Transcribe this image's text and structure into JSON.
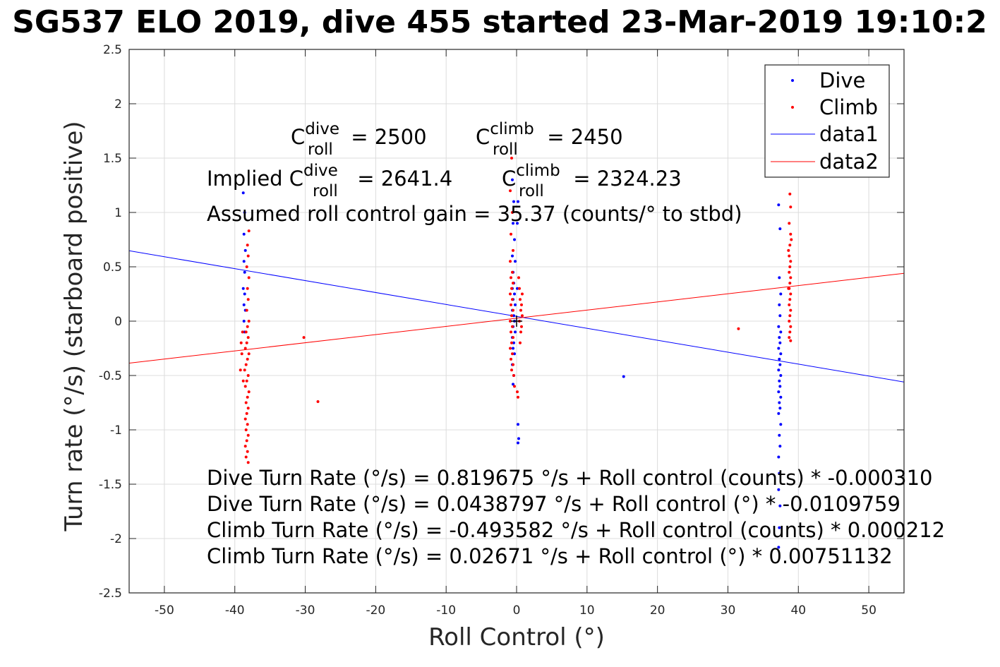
{
  "title": "SG537 ELO 2019, dive 455 started 23-Mar-2019 19:10:2",
  "chart_data": {
    "type": "scatter",
    "xlabel": "Roll Control (°)",
    "ylabel": "Turn rate (°/s) (starboard positive)",
    "xlim": [
      -55,
      55
    ],
    "ylim": [
      -2.5,
      2.5
    ],
    "xticks": [
      -50,
      -40,
      -30,
      -20,
      -10,
      0,
      10,
      20,
      30,
      40,
      50
    ],
    "yticks": [
      -2.5,
      -2,
      -1.5,
      -1,
      -0.5,
      0,
      0.5,
      1,
      1.5,
      2,
      2.5
    ],
    "grid": true,
    "legend_position": "top-right",
    "legend": [
      {
        "label": "Dive",
        "kind": "marker",
        "color": "#0000ff"
      },
      {
        "label": "Climb",
        "kind": "marker",
        "color": "#ff0000"
      },
      {
        "label": "data1",
        "kind": "line",
        "color": "#0000ff"
      },
      {
        "label": "data2",
        "kind": "line",
        "color": "#ff0000"
      }
    ],
    "series": [
      {
        "name": "Dive",
        "kind": "scatter",
        "color": "#0000ff",
        "points": [
          [
            -38.8,
            1.18
          ],
          [
            -38.6,
            1.0
          ],
          [
            -38.7,
            0.8
          ],
          [
            -38.5,
            0.65
          ],
          [
            -38.7,
            0.55
          ],
          [
            -38.6,
            0.45
          ],
          [
            -38.8,
            0.3
          ],
          [
            -38.6,
            0.25
          ],
          [
            -38.7,
            0.15
          ],
          [
            -38.5,
            0.1
          ],
          [
            -38.7,
            0.0
          ],
          [
            -38.6,
            -0.1
          ],
          [
            -0.6,
            1.3
          ],
          [
            -0.4,
            1.1
          ],
          [
            -0.5,
            0.9
          ],
          [
            -0.3,
            0.75
          ],
          [
            -0.6,
            0.6
          ],
          [
            -0.2,
            0.55
          ],
          [
            -0.5,
            0.45
          ],
          [
            -0.4,
            0.35
          ],
          [
            -0.6,
            0.3
          ],
          [
            -0.3,
            0.25
          ],
          [
            -0.5,
            0.2
          ],
          [
            -0.2,
            0.15
          ],
          [
            -0.6,
            0.1
          ],
          [
            -0.4,
            0.05
          ],
          [
            -0.3,
            0.0
          ],
          [
            -0.5,
            -0.05
          ],
          [
            -0.2,
            -0.1
          ],
          [
            -0.6,
            -0.15
          ],
          [
            -0.4,
            -0.2
          ],
          [
            -0.5,
            -0.25
          ],
          [
            -0.3,
            -0.3
          ],
          [
            -0.6,
            -0.4
          ],
          [
            -0.4,
            -0.5
          ],
          [
            -0.5,
            -0.58
          ],
          [
            0.2,
            -0.95
          ],
          [
            0.3,
            -1.08
          ],
          [
            0.2,
            -1.12
          ],
          [
            0.1,
            0.9
          ],
          [
            0.2,
            1.1
          ],
          [
            0.1,
            0.3
          ],
          [
            15.2,
            -0.51
          ],
          [
            37.2,
            1.07
          ],
          [
            37.4,
            0.85
          ],
          [
            37.3,
            0.4
          ],
          [
            37.5,
            0.25
          ],
          [
            37.3,
            0.15
          ],
          [
            37.4,
            0.05
          ],
          [
            37.2,
            -0.05
          ],
          [
            37.5,
            -0.1
          ],
          [
            37.3,
            -0.15
          ],
          [
            37.4,
            -0.2
          ],
          [
            37.2,
            -0.25
          ],
          [
            37.5,
            -0.3
          ],
          [
            37.3,
            -0.35
          ],
          [
            37.4,
            -0.4
          ],
          [
            37.2,
            -0.45
          ],
          [
            37.5,
            -0.5
          ],
          [
            37.3,
            -0.55
          ],
          [
            37.4,
            -0.6
          ],
          [
            37.2,
            -0.65
          ],
          [
            37.5,
            -0.7
          ],
          [
            37.3,
            -0.75
          ],
          [
            37.4,
            -0.8
          ],
          [
            37.2,
            -0.85
          ],
          [
            37.5,
            -0.95
          ],
          [
            37.3,
            -1.05
          ],
          [
            37.4,
            -1.15
          ],
          [
            37.2,
            -1.25
          ],
          [
            37.3,
            -1.4
          ],
          [
            37.2,
            -1.55
          ],
          [
            37.4,
            -1.7
          ],
          [
            37.3,
            -1.9
          ],
          [
            37.2,
            -2.08
          ]
        ]
      },
      {
        "name": "Climb",
        "kind": "scatter",
        "color": "#ff0000",
        "points": [
          [
            -38.0,
            0.83
          ],
          [
            -38.2,
            0.7
          ],
          [
            -38.1,
            0.6
          ],
          [
            -38.3,
            0.5
          ],
          [
            -38.0,
            0.4
          ],
          [
            -38.2,
            0.3
          ],
          [
            -38.1,
            0.2
          ],
          [
            -38.3,
            0.1
          ],
          [
            -38.0,
            0.0
          ],
          [
            -38.2,
            -0.05
          ],
          [
            -38.4,
            -0.1
          ],
          [
            -38.1,
            -0.15
          ],
          [
            -38.3,
            -0.2
          ],
          [
            -38.5,
            -0.25
          ],
          [
            -38.0,
            -0.3
          ],
          [
            -38.2,
            -0.35
          ],
          [
            -38.4,
            -0.4
          ],
          [
            -38.6,
            -0.45
          ],
          [
            -38.1,
            -0.5
          ],
          [
            -38.3,
            -0.55
          ],
          [
            -38.5,
            -0.6
          ],
          [
            -38.0,
            -0.65
          ],
          [
            -38.2,
            -0.7
          ],
          [
            -38.4,
            -0.75
          ],
          [
            -38.1,
            -0.8
          ],
          [
            -38.3,
            -0.85
          ],
          [
            -38.5,
            -0.9
          ],
          [
            -38.2,
            -0.95
          ],
          [
            -38.4,
            -1.0
          ],
          [
            -38.1,
            -1.05
          ],
          [
            -38.3,
            -1.1
          ],
          [
            -38.5,
            -1.15
          ],
          [
            -38.2,
            -1.2
          ],
          [
            -38.4,
            -1.25
          ],
          [
            -38.1,
            -1.3
          ],
          [
            -39.0,
            -0.3
          ],
          [
            -39.2,
            -0.45
          ],
          [
            -38.8,
            -0.55
          ],
          [
            -39.1,
            -0.2
          ],
          [
            -38.9,
            -0.1
          ],
          [
            -30.2,
            -0.15
          ],
          [
            -28.2,
            -0.74
          ],
          [
            -0.7,
            1.5
          ],
          [
            -0.9,
            1.2
          ],
          [
            -0.6,
            1.0
          ],
          [
            -0.8,
            0.8
          ],
          [
            -0.5,
            0.65
          ],
          [
            -0.9,
            0.55
          ],
          [
            -0.6,
            0.45
          ],
          [
            -0.8,
            0.4
          ],
          [
            -0.5,
            0.35
          ],
          [
            -0.7,
            0.3
          ],
          [
            -0.9,
            0.25
          ],
          [
            -0.6,
            0.2
          ],
          [
            -0.8,
            0.15
          ],
          [
            -0.5,
            0.1
          ],
          [
            -0.7,
            0.05
          ],
          [
            -0.9,
            0.0
          ],
          [
            -0.6,
            -0.05
          ],
          [
            -0.8,
            -0.1
          ],
          [
            -0.5,
            -0.15
          ],
          [
            -0.7,
            -0.2
          ],
          [
            -0.9,
            -0.25
          ],
          [
            -0.6,
            -0.3
          ],
          [
            -0.8,
            -0.35
          ],
          [
            -0.5,
            -0.4
          ],
          [
            -0.7,
            -0.45
          ],
          [
            -0.4,
            -0.5
          ],
          [
            -0.3,
            -0.6
          ],
          [
            0.1,
            -0.65
          ],
          [
            0.2,
            -0.7
          ],
          [
            0.4,
            0.3
          ],
          [
            0.5,
            0.2
          ],
          [
            0.6,
            0.1
          ],
          [
            0.4,
            0.0
          ],
          [
            0.6,
            -0.1
          ],
          [
            0.5,
            -0.2
          ],
          [
            0.3,
            0.4
          ],
          [
            0.7,
            0.15
          ],
          [
            0.8,
            0.05
          ],
          [
            0.7,
            -0.05
          ],
          [
            0.8,
            0.25
          ],
          [
            31.5,
            -0.07
          ],
          [
            38.8,
            1.17
          ],
          [
            38.9,
            1.05
          ],
          [
            38.7,
            0.9
          ],
          [
            38.9,
            0.8
          ],
          [
            38.8,
            0.7
          ],
          [
            38.7,
            0.6
          ],
          [
            38.9,
            0.55
          ],
          [
            38.8,
            0.5
          ],
          [
            38.7,
            0.45
          ],
          [
            38.9,
            0.4
          ],
          [
            38.8,
            0.35
          ],
          [
            38.7,
            0.3
          ],
          [
            38.9,
            0.25
          ],
          [
            38.8,
            0.2
          ],
          [
            38.7,
            0.15
          ],
          [
            38.9,
            0.1
          ],
          [
            38.8,
            0.05
          ],
          [
            38.7,
            0.0
          ],
          [
            38.9,
            -0.05
          ],
          [
            38.8,
            -0.1
          ],
          [
            38.7,
            -0.15
          ],
          [
            38.9,
            -0.18
          ],
          [
            38.6,
            0.65
          ],
          [
            39.0,
            0.75
          ],
          [
            38.6,
            0.3
          ]
        ]
      },
      {
        "name": "data1",
        "kind": "line",
        "color": "#0000ff",
        "x": [
          -55,
          55
        ],
        "y": [
          0.6475,
          -0.5598
        ]
      },
      {
        "name": "data2",
        "kind": "line",
        "color": "#ff0000",
        "x": [
          -55,
          55
        ],
        "y": [
          -0.3864,
          0.4398
        ]
      }
    ]
  },
  "annotations": {
    "c_dive_prefix": "C",
    "c_dive_sup": "dive",
    "c_dive_sub": "roll",
    "c_dive_value": " = 2500",
    "c_climb_prefix": "C",
    "c_climb_sup": "climb",
    "c_climb_sub": "roll",
    "c_climb_value": " = 2450",
    "implied_label": "Implied C",
    "implied_dive_sup": "dive",
    "implied_dive_sub": "roll",
    "implied_dive_value": " = 2641.4",
    "implied_climb_prefix": "C",
    "implied_climb_sup": "climb",
    "implied_climb_sub": "roll",
    "implied_climb_value": " = 2324.23",
    "gain_text": "Assumed roll control gain = 35.37 (counts/° to stbd)",
    "fit_lines": [
      "Dive Turn Rate (°/s) = 0.819675 °/s + Roll control (counts) * -0.000310",
      "Dive Turn Rate (°/s) = 0.0438797 °/s + Roll control (°) * -0.0109759",
      "Climb Turn Rate (°/s) = -0.493582 °/s + Roll control (counts) * 0.000212",
      "Climb Turn Rate (°/s) = 0.02671 °/s + Roll control (°) * 0.00751132"
    ]
  }
}
